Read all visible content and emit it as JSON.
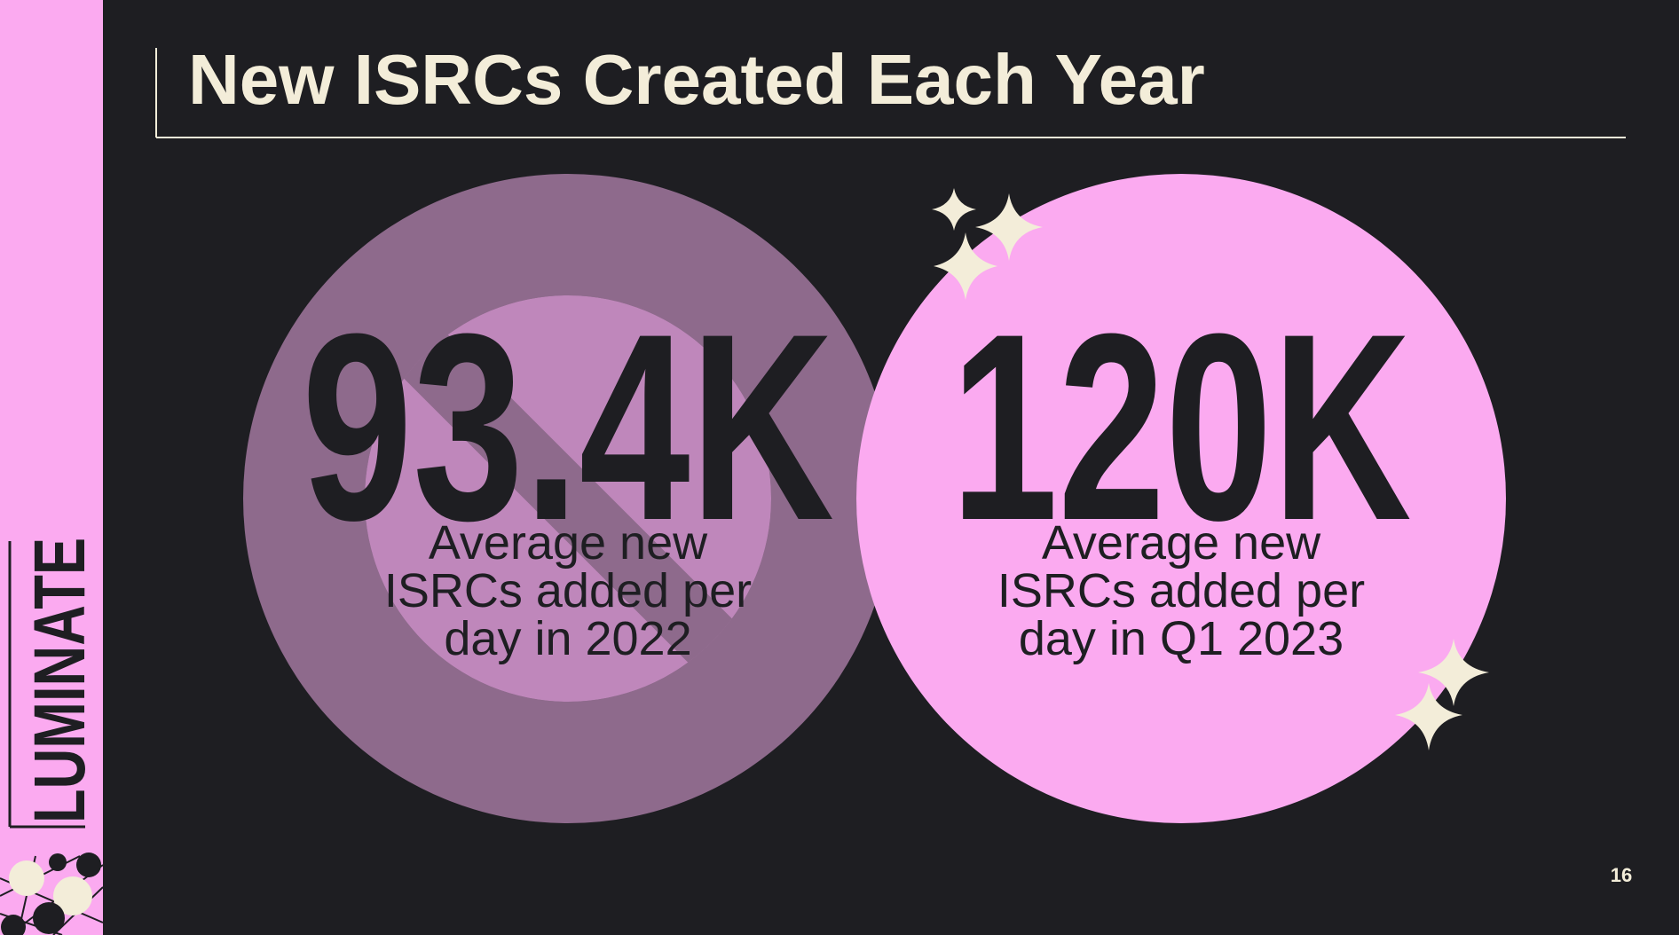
{
  "header": {
    "title": "New ISRCs Created Each Year"
  },
  "logo": "LUMINATE",
  "stats": [
    {
      "value": "93.4K",
      "label_lines": [
        "Average new",
        "ISRCs added per",
        "day in 2022"
      ]
    },
    {
      "value": "120K",
      "label_lines": [
        "Average new",
        "ISRCs added per",
        "day in Q1 2023"
      ]
    }
  ],
  "page_number": "16"
}
